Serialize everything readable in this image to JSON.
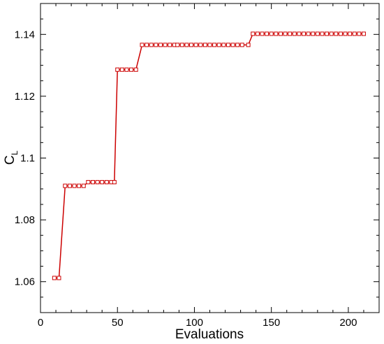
{
  "chart_data": {
    "type": "line",
    "title": "",
    "xlabel": "Evaluations",
    "ylabel_main": "C",
    "ylabel_sub": "L",
    "xlim": [
      0,
      220
    ],
    "ylim": [
      1.05,
      1.15
    ],
    "x_ticks": [
      0,
      50,
      100,
      150,
      200
    ],
    "x_tick_labels": [
      "0",
      "50",
      "100",
      "150",
      "200"
    ],
    "y_ticks": [
      1.06,
      1.08,
      1.1,
      1.12,
      1.14
    ],
    "y_tick_labels": [
      "1.06",
      "1.08",
      "1.1",
      "1.12",
      "1.14"
    ],
    "grid": false,
    "legend": "none",
    "color": "#cc0000",
    "marker": "square",
    "series": [
      {
        "x": [
          9,
          12,
          16,
          19,
          22,
          25,
          28,
          31,
          34,
          37,
          40,
          43,
          46,
          48,
          50,
          53,
          56,
          59,
          62,
          66,
          69,
          72,
          75,
          78,
          81,
          84,
          87,
          89,
          92,
          95,
          98,
          101,
          104,
          107,
          110,
          113,
          116,
          119,
          122,
          125,
          128,
          131,
          135,
          138,
          141,
          144,
          147,
          150,
          153,
          156,
          159,
          162,
          165,
          168,
          171,
          174,
          177,
          180,
          183,
          186,
          189,
          192,
          195,
          198,
          201,
          204,
          207,
          210
        ],
        "y": [
          1.0612,
          1.0612,
          1.091,
          1.091,
          1.091,
          1.091,
          1.091,
          1.0922,
          1.0922,
          1.0922,
          1.0922,
          1.0922,
          1.0922,
          1.0922,
          1.1286,
          1.1286,
          1.1286,
          1.1286,
          1.1286,
          1.1366,
          1.1366,
          1.1366,
          1.1366,
          1.1366,
          1.1366,
          1.1366,
          1.1366,
          1.1366,
          1.1366,
          1.1366,
          1.1366,
          1.1366,
          1.1366,
          1.1366,
          1.1366,
          1.1366,
          1.1366,
          1.1366,
          1.1366,
          1.1366,
          1.1366,
          1.1366,
          1.1366,
          1.1402,
          1.1402,
          1.1402,
          1.1402,
          1.1402,
          1.1402,
          1.1402,
          1.1402,
          1.1402,
          1.1402,
          1.1402,
          1.1402,
          1.1402,
          1.1402,
          1.1402,
          1.1402,
          1.1402,
          1.1402,
          1.1402,
          1.1402,
          1.1402,
          1.1402,
          1.1402,
          1.1402,
          1.1402
        ]
      }
    ]
  }
}
